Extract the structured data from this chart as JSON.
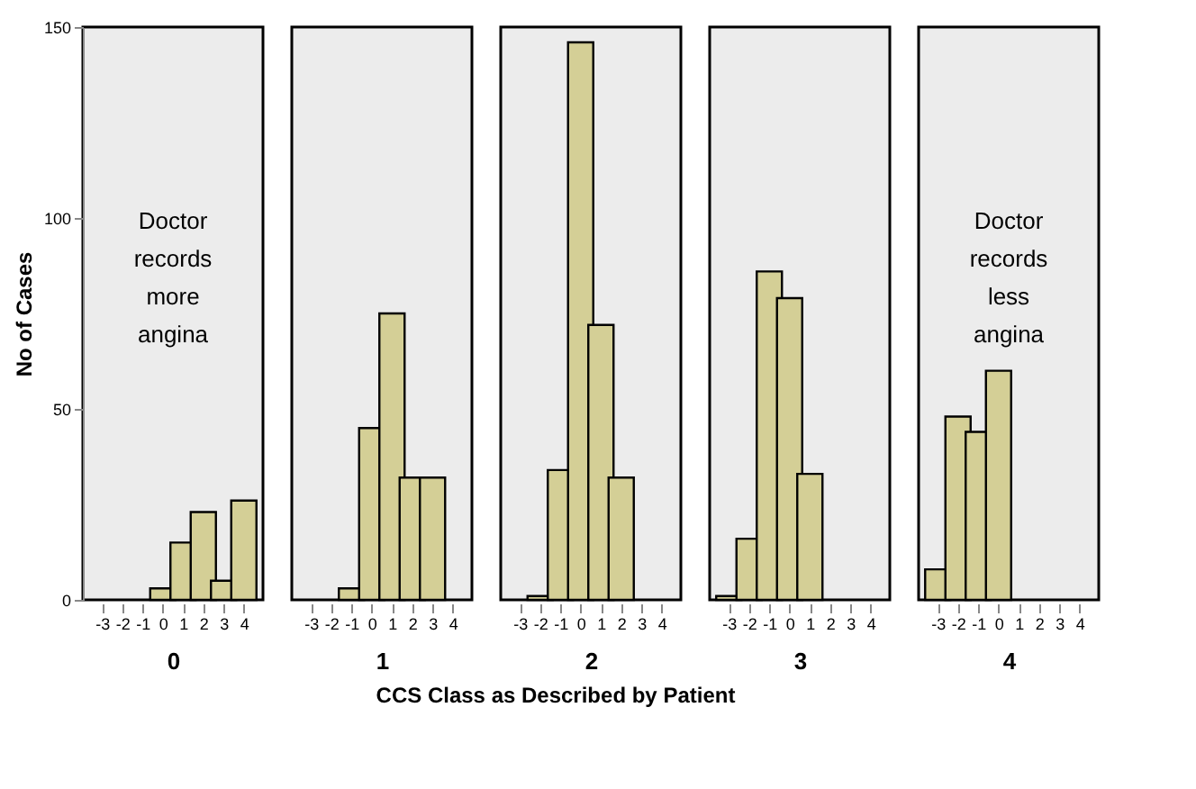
{
  "chart_data": [
    {
      "type": "bar",
      "categories": [
        "-3",
        "-2",
        "-1",
        "0",
        "1",
        "2",
        "3",
        "4"
      ],
      "values": [
        null,
        null,
        null,
        3,
        15,
        23,
        5,
        26
      ],
      "color": "#d4cf96",
      "ylim": [
        0,
        150
      ],
      "yticks": [
        0,
        50,
        100,
        150
      ],
      "ylabel": "No of Cases",
      "xlabel": "0",
      "annotations": [
        "Doctor records more angina"
      ],
      "grid": false
    },
    {
      "type": "bar",
      "categories": [
        "-3",
        "-2",
        "-1",
        "0",
        "1",
        "2",
        "3",
        "4"
      ],
      "values": [
        null,
        null,
        3,
        45,
        75,
        32,
        32,
        null
      ],
      "color": "#d4cf96",
      "ylim": [
        0,
        150
      ],
      "xlabel": "1",
      "tick_labels": "x",
      "grid": false
    },
    {
      "type": "bar",
      "categories": [
        "-3",
        "-2",
        "-1",
        "0",
        "1",
        "2",
        "3",
        "4"
      ],
      "values": [
        null,
        1,
        34,
        146,
        72,
        32,
        null,
        null
      ],
      "color": "#d4cf96",
      "ylim": [
        0,
        150
      ],
      "xlabel": "2",
      "tick_labels": "x",
      "annotations": [
        "CCS Class as Described by Patient"
      ],
      "grid": false
    },
    {
      "type": "bar",
      "categories": [
        "-3",
        "-2",
        "-1",
        "0",
        "1",
        "2",
        "3",
        "4"
      ],
      "values": [
        1,
        16,
        86,
        79,
        33,
        null,
        null,
        null
      ],
      "color": "#d4cf96",
      "ylim": [
        0,
        150
      ],
      "xlabel": "3",
      "tick_labels": "x",
      "grid": false
    },
    {
      "type": "bar",
      "categories": [
        "-3",
        "-2",
        "-1",
        "0",
        "1",
        "2",
        "3",
        "4"
      ],
      "values": [
        8,
        48,
        44,
        60,
        null,
        null,
        null,
        null
      ],
      "color": "#d4cf96",
      "ylim": [
        0,
        150
      ],
      "xlabel": "4",
      "tick_labels": "x",
      "annotations": [
        "Doctor records less angina"
      ],
      "grid": false
    }
  ]
}
